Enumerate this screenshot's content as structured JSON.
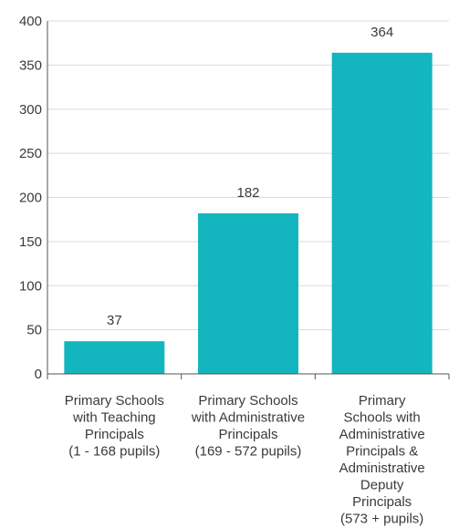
{
  "chart_data": {
    "type": "bar",
    "categories": [
      [
        "Primary Schools",
        "with Teaching",
        "Principals",
        "(1 - 168 pupils)"
      ],
      [
        "Primary Schools",
        "with Administrative",
        "Principals",
        "(169 - 572 pupils)"
      ],
      [
        "Primary",
        "Schools with",
        "Administrative",
        "Principals &",
        "Administrative",
        "Deputy",
        "Principals",
        "(573 + pupils)"
      ]
    ],
    "values": [
      37,
      182,
      364
    ],
    "data_labels": [
      "37",
      "182",
      "364"
    ],
    "ylim": [
      0,
      400
    ],
    "yticks": [
      0,
      50,
      100,
      150,
      200,
      250,
      300,
      350,
      400
    ],
    "grid": true,
    "bar_color": "#13b5bf",
    "grid_color": "#d9d9d9",
    "axis_color": "#555555",
    "title": "",
    "xlabel": "",
    "ylabel": ""
  }
}
